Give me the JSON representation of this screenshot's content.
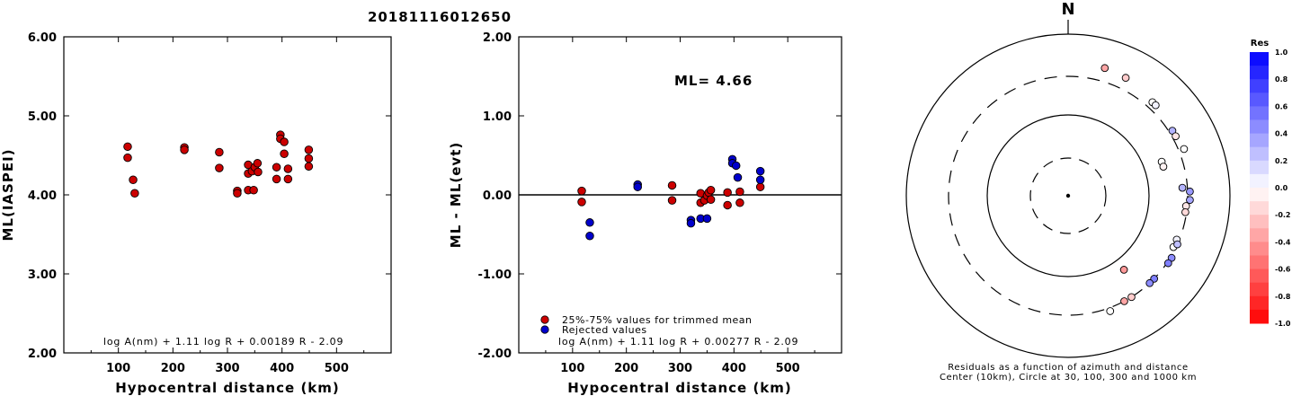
{
  "event_id": "20181116012650",
  "colors": {
    "trimmed": "#cc0000",
    "rejected": "#0000cc",
    "axis": "#000000"
  },
  "chart_data": [
    {
      "type": "scatter",
      "title": "",
      "xlabel": "Hypocentral distance (km)",
      "ylabel": "ML(IASPEI)",
      "xlim": [
        0,
        600
      ],
      "ylim": [
        2.0,
        6.0
      ],
      "x_ticks": [
        "100",
        "200",
        "300",
        "400",
        "500"
      ],
      "y_ticks": [
        "2.00",
        "3.00",
        "4.00",
        "5.00",
        "6.00"
      ],
      "formula": "log A(nm) + 1.11 log R + 0.00189 R - 2.09",
      "series": [
        {
          "points": [
            [
              117,
              4.61
            ],
            [
              117,
              4.47
            ],
            [
              127,
              4.19
            ],
            [
              130,
              4.02
            ],
            [
              221,
              4.6
            ],
            [
              221,
              4.57
            ],
            [
              285,
              4.54
            ],
            [
              285,
              4.34
            ],
            [
              318,
              4.05
            ],
            [
              318,
              4.02
            ],
            [
              338,
              4.38
            ],
            [
              338,
              4.27
            ],
            [
              338,
              4.06
            ],
            [
              345,
              4.3
            ],
            [
              350,
              4.35
            ],
            [
              348,
              4.06
            ],
            [
              355,
              4.4
            ],
            [
              356,
              4.29
            ],
            [
              390,
              4.35
            ],
            [
              390,
              4.2
            ],
            [
              397,
              4.76
            ],
            [
              397,
              4.71
            ],
            [
              404,
              4.67
            ],
            [
              404,
              4.52
            ],
            [
              411,
              4.33
            ],
            [
              411,
              4.2
            ],
            [
              449,
              4.57
            ],
            [
              449,
              4.46
            ],
            [
              449,
              4.36
            ]
          ]
        }
      ]
    },
    {
      "type": "scatter",
      "title": "",
      "xlabel": "Hypocentral distance (km)",
      "ylabel": "ML - ML(evt)",
      "xlim": [
        0,
        600
      ],
      "ylim": [
        -2.0,
        2.0
      ],
      "x_ticks": [
        "100",
        "200",
        "300",
        "400",
        "500"
      ],
      "y_ticks": [
        "-2.00",
        "-1.00",
        "0.00",
        "1.00",
        "2.00"
      ],
      "ml_label": "ML= 4.66",
      "formula": "log A(nm) + 1.11 log R + 0.00277 R - 2.09",
      "legend": {
        "placement": "bottom-left",
        "entries": [
          "25%-75% values for trimmed mean",
          "Rejected values"
        ]
      },
      "series": [
        {
          "name": "25%-75% values for trimmed mean",
          "points": [
            [
              117,
              0.05
            ],
            [
              117,
              -0.09
            ],
            [
              285,
              0.12
            ],
            [
              285,
              -0.07
            ],
            [
              338,
              0.02
            ],
            [
              338,
              -0.1
            ],
            [
              345,
              -0.07
            ],
            [
              350,
              -0.01
            ],
            [
              353,
              0.03
            ],
            [
              357,
              0.06
            ],
            [
              357,
              -0.06
            ],
            [
              388,
              0.03
            ],
            [
              388,
              -0.13
            ],
            [
              411,
              0.04
            ],
            [
              411,
              -0.1
            ],
            [
              449,
              0.1
            ]
          ]
        },
        {
          "name": "Rejected values",
          "points": [
            [
              132,
              -0.35
            ],
            [
              132,
              -0.52
            ],
            [
              221,
              0.13
            ],
            [
              221,
              0.1
            ],
            [
              320,
              -0.32
            ],
            [
              320,
              -0.36
            ],
            [
              338,
              -0.3
            ],
            [
              350,
              -0.3
            ],
            [
              397,
              0.45
            ],
            [
              397,
              0.4
            ],
            [
              404,
              0.37
            ],
            [
              407,
              0.22
            ],
            [
              449,
              0.3
            ],
            [
              449,
              0.19
            ]
          ]
        }
      ]
    },
    {
      "type": "scatter",
      "subtype": "polar residual map",
      "north_label": "N",
      "caption_lines": [
        "Residuals as a function of azimuth and distance",
        "Center (10km), Circle at 30, 100, 300 and 1000 km"
      ],
      "rings_km": [
        30,
        100,
        300,
        1000
      ],
      "colorbar": {
        "title": "Res",
        "ticks": [
          "1.0",
          "0.8",
          "0.6",
          "0.4",
          "0.2",
          "0.0",
          "-0.2",
          "-0.4",
          "-0.6",
          "-0.8",
          "-1.0"
        ],
        "range": [
          -1.0,
          1.0
        ]
      },
      "points": [
        {
          "azimuth_deg": 16,
          "distance_km": 440,
          "residual": -0.35
        },
        {
          "azimuth_deg": 26,
          "distance_km": 420,
          "residual": -0.2
        },
        {
          "azimuth_deg": 42,
          "distance_km": 360,
          "residual": 0.0
        },
        {
          "azimuth_deg": 44,
          "distance_km": 360,
          "residual": 0.05
        },
        {
          "azimuth_deg": 58,
          "distance_km": 330,
          "residual": 0.3
        },
        {
          "azimuth_deg": 61,
          "distance_km": 330,
          "residual": -0.1
        },
        {
          "azimuth_deg": 68,
          "distance_km": 350,
          "residual": 0.0
        },
        {
          "azimuth_deg": 70,
          "distance_km": 170,
          "residual": 0.0
        },
        {
          "azimuth_deg": 73,
          "distance_km": 170,
          "residual": -0.05
        },
        {
          "azimuth_deg": 86,
          "distance_km": 260,
          "residual": 0.3
        },
        {
          "azimuth_deg": 88,
          "distance_km": 320,
          "residual": 0.4
        },
        {
          "azimuth_deg": 92,
          "distance_km": 320,
          "residual": 0.35
        },
        {
          "azimuth_deg": 95,
          "distance_km": 290,
          "residual": -0.1
        },
        {
          "azimuth_deg": 98,
          "distance_km": 290,
          "residual": -0.15
        },
        {
          "azimuth_deg": 112,
          "distance_km": 280,
          "residual": 0.05
        },
        {
          "azimuth_deg": 116,
          "distance_km": 280,
          "residual": 0.0
        },
        {
          "azimuth_deg": 114,
          "distance_km": 300,
          "residual": 0.25
        },
        {
          "azimuth_deg": 121,
          "distance_km": 310,
          "residual": 0.45
        },
        {
          "azimuth_deg": 124,
          "distance_km": 310,
          "residual": 0.5
        },
        {
          "azimuth_deg": 134,
          "distance_km": 300,
          "residual": 0.5
        },
        {
          "azimuth_deg": 137,
          "distance_km": 300,
          "residual": 0.45
        },
        {
          "azimuth_deg": 148,
          "distance_km": 300,
          "residual": -0.2
        },
        {
          "azimuth_deg": 152,
          "distance_km": 300,
          "residual": -0.35
        },
        {
          "azimuth_deg": 160,
          "distance_km": 330,
          "residual": 0.0
        },
        {
          "azimuth_deg": 143,
          "distance_km": 140,
          "residual": -0.4
        }
      ]
    }
  ]
}
